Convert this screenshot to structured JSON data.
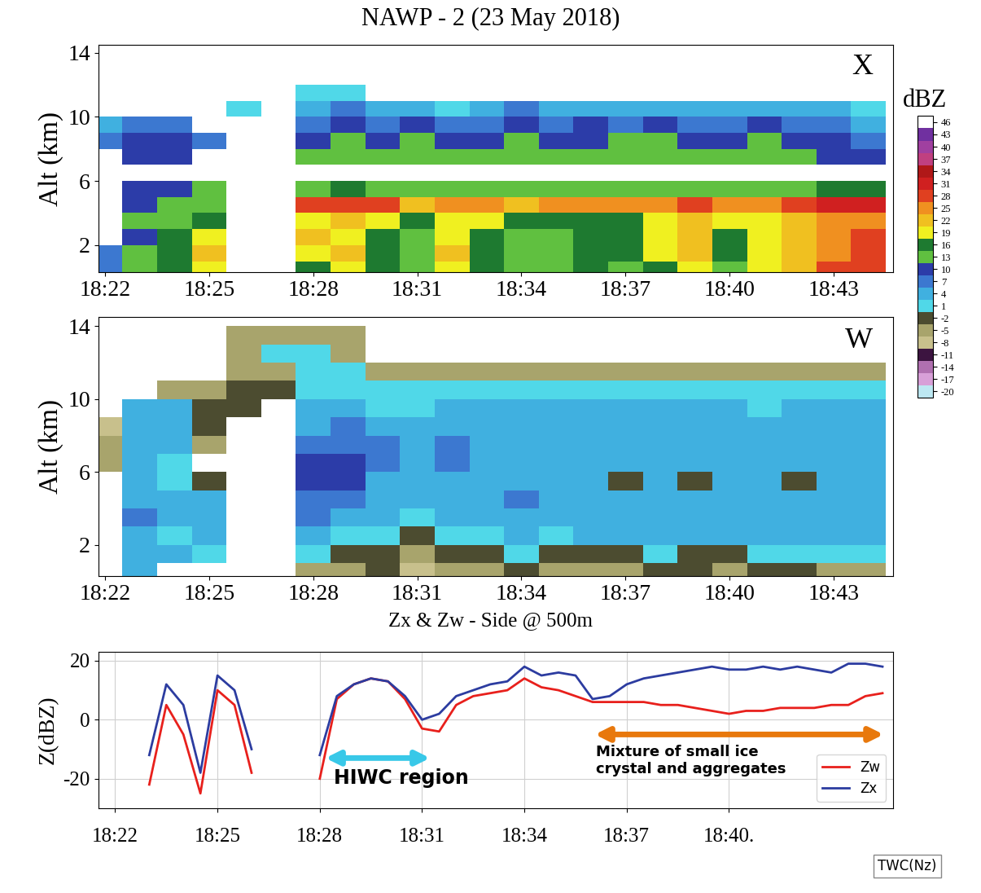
{
  "chart_data": [
    {
      "type": "heatmap",
      "title": "NAWP - 2 (23 May 2018)",
      "panel_label": "X",
      "y_label": "Alt (km)",
      "x": [
        22,
        23,
        24,
        25,
        26,
        27,
        28,
        29,
        30,
        31,
        32,
        33,
        34,
        35,
        36,
        37,
        38,
        39,
        40,
        41,
        42,
        43,
        44
      ],
      "y": [
        0.5,
        1.5,
        2.5,
        3.5,
        4.5,
        5.5,
        6.5,
        7.5,
        8.5,
        9.5,
        10.5,
        11.5,
        12.5,
        13.5
      ],
      "xlim": [
        21.8,
        44.7
      ],
      "ylim": [
        0.3,
        14.5
      ],
      "xticks": [
        {
          "value": 22,
          "label": "18:22"
        },
        {
          "value": 25,
          "label": "18:25"
        },
        {
          "value": 28,
          "label": "18:28"
        },
        {
          "value": 31,
          "label": "18:31"
        },
        {
          "value": 34,
          "label": "18:34"
        },
        {
          "value": 37,
          "label": "18:37"
        },
        {
          "value": 40,
          "label": "18:40"
        },
        {
          "value": 43,
          "label": "18:43"
        }
      ],
      "yticks": [
        2,
        6,
        10,
        14
      ],
      "cells": [
        [
          7,
          13,
          16,
          19,
          null,
          null,
          16,
          19,
          16,
          13,
          19,
          16,
          13,
          13,
          16,
          13,
          16,
          19,
          13,
          19,
          22,
          28,
          28
        ],
        [
          7,
          13,
          16,
          22,
          null,
          null,
          19,
          22,
          16,
          13,
          22,
          16,
          13,
          13,
          16,
          16,
          19,
          22,
          16,
          19,
          22,
          25,
          28
        ],
        [
          null,
          10,
          16,
          19,
          null,
          null,
          22,
          19,
          16,
          13,
          19,
          16,
          13,
          13,
          16,
          16,
          19,
          22,
          16,
          19,
          22,
          25,
          28
        ],
        [
          null,
          13,
          13,
          16,
          null,
          null,
          19,
          22,
          19,
          16,
          19,
          19,
          16,
          16,
          16,
          16,
          19,
          22,
          19,
          19,
          22,
          25,
          25
        ],
        [
          null,
          10,
          13,
          13,
          null,
          null,
          28,
          28,
          28,
          22,
          25,
          25,
          22,
          25,
          25,
          25,
          25,
          28,
          25,
          25,
          28,
          31,
          31
        ],
        [
          null,
          10,
          10,
          13,
          null,
          null,
          13,
          16,
          13,
          13,
          13,
          13,
          13,
          13,
          13,
          13,
          13,
          13,
          13,
          13,
          13,
          16,
          16
        ],
        [
          null,
          null,
          null,
          null,
          null,
          null,
          null,
          null,
          null,
          null,
          null,
          null,
          null,
          null,
          null,
          null,
          null,
          null,
          null,
          null,
          null,
          null,
          null
        ],
        [
          null,
          10,
          10,
          null,
          null,
          null,
          13,
          13,
          13,
          13,
          13,
          13,
          13,
          13,
          13,
          13,
          13,
          13,
          13,
          13,
          13,
          10,
          10
        ],
        [
          7,
          10,
          10,
          7,
          null,
          null,
          10,
          13,
          10,
          13,
          10,
          10,
          13,
          10,
          10,
          13,
          13,
          10,
          10,
          13,
          10,
          10,
          7
        ],
        [
          4,
          7,
          7,
          null,
          null,
          null,
          7,
          10,
          7,
          10,
          7,
          7,
          10,
          7,
          10,
          7,
          10,
          7,
          7,
          10,
          7,
          7,
          4
        ],
        [
          null,
          null,
          null,
          null,
          1,
          null,
          4,
          7,
          4,
          4,
          1,
          4,
          7,
          4,
          4,
          4,
          4,
          4,
          4,
          4,
          4,
          4,
          1
        ],
        [
          null,
          null,
          null,
          null,
          null,
          null,
          1,
          1,
          null,
          null,
          null,
          null,
          null,
          null,
          null,
          null,
          null,
          null,
          null,
          null,
          null,
          null,
          null
        ],
        [
          null,
          null,
          null,
          null,
          null,
          null,
          null,
          null,
          null,
          null,
          null,
          null,
          null,
          null,
          null,
          null,
          null,
          null,
          null,
          null,
          null,
          null,
          null
        ],
        [
          null,
          null,
          null,
          null,
          null,
          null,
          null,
          null,
          null,
          null,
          null,
          null,
          null,
          null,
          null,
          null,
          null,
          null,
          null,
          null,
          null,
          null,
          null
        ]
      ],
      "colorbar": {
        "label": "dBZ",
        "range": [
          -21.5,
          47.5
        ],
        "ticks": [
          -20,
          -17,
          -14,
          -11,
          -8,
          -5,
          -2,
          1,
          4,
          7,
          10,
          13,
          16,
          19,
          22,
          25,
          28,
          31,
          34,
          37,
          40,
          43,
          46
        ],
        "colors": [
          "#bde8f2",
          "#d8a0d8",
          "#b070b0",
          "#3c1440",
          "#c8c08c",
          "#a8a46c",
          "#4c4c30",
          "#50d8e8",
          "#40b0e0",
          "#3c78d0",
          "#2c3ca8",
          "#60c040",
          "#1e7a30",
          "#f0f020",
          "#f0c020",
          "#f09020",
          "#e04020",
          "#d02020",
          "#b01818",
          "#c04080",
          "#a040a0",
          "#7030a0",
          "#ffffff"
        ]
      }
    },
    {
      "type": "heatmap",
      "panel_label": "W",
      "y_label": "Alt (km)",
      "x": [
        22,
        23,
        24,
        25,
        26,
        27,
        28,
        29,
        30,
        31,
        32,
        33,
        34,
        35,
        36,
        37,
        38,
        39,
        40,
        41,
        42,
        43,
        44
      ],
      "y": [
        0.5,
        1.5,
        2.5,
        3.5,
        4.5,
        5.5,
        6.5,
        7.5,
        8.5,
        9.5,
        10.5,
        11.5,
        12.5,
        13.5
      ],
      "xlim": [
        21.8,
        44.7
      ],
      "ylim": [
        0.3,
        14.5
      ],
      "xticks": [
        {
          "value": 22,
          "label": "18:22"
        },
        {
          "value": 25,
          "label": "18:25"
        },
        {
          "value": 28,
          "label": "18:28"
        },
        {
          "value": 31,
          "label": "18:31"
        },
        {
          "value": 34,
          "label": "18:34"
        },
        {
          "value": 37,
          "label": "18:37"
        },
        {
          "value": 40,
          "label": "18:40"
        },
        {
          "value": 43,
          "label": "18:43"
        }
      ],
      "yticks": [
        2,
        6,
        10,
        14
      ],
      "cells": [
        [
          null,
          4,
          null,
          null,
          null,
          null,
          -5,
          -5,
          -2,
          -8,
          -5,
          -5,
          -2,
          -5,
          -5,
          -5,
          -2,
          -2,
          -5,
          -2,
          -2,
          -5,
          -5
        ],
        [
          null,
          4,
          4,
          1,
          null,
          null,
          1,
          -2,
          -2,
          -5,
          -2,
          -2,
          1,
          -2,
          -2,
          -2,
          1,
          -2,
          -2,
          1,
          1,
          1,
          1
        ],
        [
          null,
          4,
          1,
          4,
          null,
          null,
          4,
          1,
          1,
          -2,
          1,
          1,
          4,
          1,
          4,
          4,
          4,
          4,
          4,
          4,
          4,
          4,
          4
        ],
        [
          null,
          7,
          4,
          4,
          null,
          null,
          7,
          4,
          4,
          1,
          4,
          4,
          4,
          4,
          4,
          4,
          4,
          4,
          4,
          4,
          4,
          4,
          4
        ],
        [
          null,
          4,
          4,
          4,
          null,
          null,
          7,
          7,
          4,
          4,
          4,
          4,
          7,
          4,
          4,
          4,
          4,
          4,
          4,
          4,
          4,
          4,
          4
        ],
        [
          null,
          4,
          1,
          -2,
          null,
          null,
          10,
          10,
          4,
          4,
          4,
          4,
          4,
          4,
          4,
          -2,
          4,
          -2,
          4,
          4,
          -2,
          4,
          4
        ],
        [
          -5,
          4,
          1,
          null,
          null,
          null,
          10,
          10,
          7,
          4,
          7,
          4,
          4,
          4,
          4,
          4,
          4,
          4,
          4,
          4,
          4,
          4,
          4
        ],
        [
          -5,
          4,
          4,
          -5,
          null,
          null,
          7,
          7,
          7,
          4,
          7,
          4,
          4,
          4,
          4,
          4,
          4,
          4,
          4,
          4,
          4,
          4,
          4
        ],
        [
          -8,
          4,
          4,
          -2,
          null,
          null,
          4,
          7,
          4,
          4,
          4,
          4,
          4,
          4,
          4,
          4,
          4,
          4,
          4,
          4,
          4,
          4,
          4
        ],
        [
          null,
          4,
          4,
          -2,
          -2,
          null,
          4,
          4,
          1,
          1,
          4,
          4,
          4,
          4,
          4,
          4,
          4,
          4,
          4,
          1,
          4,
          4,
          4
        ],
        [
          null,
          null,
          -5,
          -5,
          -2,
          -2,
          1,
          1,
          1,
          1,
          1,
          1,
          1,
          1,
          1,
          1,
          1,
          1,
          1,
          1,
          1,
          1,
          1
        ],
        [
          null,
          null,
          null,
          null,
          -5,
          -5,
          1,
          1,
          -5,
          -5,
          -5,
          -5,
          -5,
          -5,
          -5,
          -5,
          -5,
          -5,
          -5,
          -5,
          -5,
          -5,
          -5
        ],
        [
          null,
          null,
          null,
          null,
          -5,
          1,
          1,
          -5,
          null,
          null,
          null,
          null,
          null,
          null,
          null,
          null,
          null,
          null,
          null,
          null,
          null,
          null,
          null
        ],
        [
          null,
          null,
          null,
          null,
          -5,
          -5,
          -5,
          -5,
          null,
          null,
          null,
          null,
          null,
          null,
          null,
          null,
          null,
          null,
          null,
          null,
          null,
          null,
          null
        ]
      ]
    },
    {
      "type": "line",
      "title": "Zx & Zw - Side @ 500m",
      "y_label": "Z(dBZ)",
      "x": [
        22.5,
        23.0,
        23.5,
        24.0,
        24.5,
        25.0,
        25.5,
        26.0,
        26.5,
        27.0,
        27.5,
        28.0,
        28.5,
        29.0,
        29.5,
        30.0,
        30.5,
        31.0,
        31.5,
        32.0,
        32.5,
        33.0,
        33.5,
        34.0,
        34.5,
        35.0,
        35.5,
        36.0,
        36.5,
        37.0,
        37.5,
        38.0,
        38.5,
        39.0,
        39.5,
        40.0,
        40.5,
        41.0,
        41.5,
        42.0,
        42.5,
        43.0,
        43.5,
        44.0,
        44.5
      ],
      "series": [
        {
          "name": "Zw",
          "color": "#e8201c",
          "values": [
            null,
            -22,
            5,
            -5,
            -25,
            10,
            5,
            -18,
            null,
            null,
            null,
            -20,
            7,
            12,
            14,
            13,
            7,
            -3,
            -4,
            5,
            8,
            9,
            10,
            14,
            11,
            10,
            8,
            6,
            6,
            6,
            6,
            5,
            5,
            4,
            3,
            2,
            3,
            3,
            4,
            4,
            4,
            5,
            5,
            8,
            9
          ]
        },
        {
          "name": "Zx",
          "color": "#2c3ca0",
          "values": [
            null,
            -12,
            12,
            5,
            -18,
            15,
            10,
            -10,
            null,
            null,
            null,
            -12,
            8,
            12,
            14,
            13,
            8,
            0,
            2,
            8,
            10,
            12,
            13,
            18,
            15,
            16,
            15,
            7,
            8,
            12,
            14,
            15,
            16,
            17,
            18,
            17,
            17,
            18,
            17,
            18,
            17,
            16,
            19,
            19,
            18
          ]
        }
      ],
      "xlim": [
        21.5,
        44.8
      ],
      "ylim": [
        -30,
        23
      ],
      "xticks": [
        {
          "value": 22,
          "label": "18:22"
        },
        {
          "value": 25,
          "label": "18:25"
        },
        {
          "value": 28,
          "label": "18:28"
        },
        {
          "value": 31,
          "label": "18:31"
        },
        {
          "value": 34,
          "label": "18:34"
        },
        {
          "value": 37,
          "label": "18:37"
        },
        {
          "value": 40,
          "label": "18:40."
        }
      ],
      "yticks": [
        -20,
        0,
        20
      ],
      "grid": true,
      "legend": "lower right",
      "annotations": [
        {
          "text": "HIWC region",
          "x": [
            28.1,
            31.3
          ],
          "y": -13,
          "color": "#38c8e8"
        },
        {
          "text": "Mixture of small ice\ncrystal and aggregates",
          "x": [
            36.0,
            44.6
          ],
          "y": -5,
          "color": "#e8780c"
        },
        {
          "text": "TWC(Nz)"
        }
      ]
    }
  ]
}
